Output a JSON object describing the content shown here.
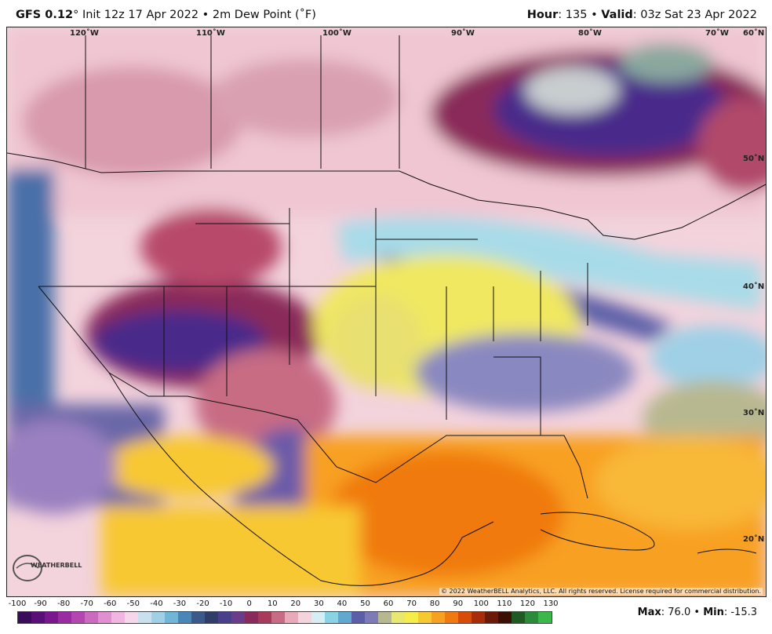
{
  "header": {
    "model": "GFS 0.12",
    "deg": "°",
    "init": "Init 12z 17 Apr 2022",
    "bullet": "•",
    "product": "2m Dew Point (˚F)",
    "hour_label": "Hour",
    "hour_value": ": 135",
    "valid_label": "Valid",
    "valid_value": ": 03z Sat 23 Apr 2022"
  },
  "map": {
    "lon_labels": [
      "120˚W",
      "110˚W",
      "100˚W",
      "90˚W",
      "80˚W",
      "70˚W"
    ],
    "lat_labels": [
      "60˚N",
      "50˚N",
      "40˚N",
      "30˚N",
      "20˚N"
    ],
    "copyright": "© 2022 WeatherBELL Analytics, LLC. All rights reserved. License required for commercial distribution.",
    "logo_text": "WEATHERBELL"
  },
  "legend": {
    "tick_labels": [
      "-100",
      "-90",
      "-80",
      "-70",
      "-60",
      "-50",
      "-40",
      "-30",
      "-20",
      "-10",
      "0",
      "10",
      "20",
      "30",
      "40",
      "50",
      "60",
      "70",
      "80",
      "90",
      "100",
      "110",
      "120",
      "130"
    ],
    "colors": [
      "#3a0b5a",
      "#5a0f78",
      "#7a1690",
      "#9a2ba0",
      "#b545b0",
      "#cc6ac0",
      "#e08fd0",
      "#f0b5e0",
      "#f6d6ea",
      "#c9e0ef",
      "#9fd0e6",
      "#6fb6d8",
      "#4a86b8",
      "#3b5a8c",
      "#2f3d6a",
      "#4a3f8a",
      "#6a3c8a",
      "#8a2a5a",
      "#a83a5c",
      "#c86c84",
      "#e8a9b9",
      "#f3d3dc",
      "#d6eef3",
      "#8ad2e6",
      "#5fa8cf",
      "#5b5fa8",
      "#7e7ab8",
      "#b8b890",
      "#e8e870",
      "#f6ec4a",
      "#f8c830",
      "#f8a020",
      "#f07a10",
      "#d84c0a",
      "#a82c08",
      "#6a1a06",
      "#3a1004",
      "#1e5a22",
      "#2a8c3a",
      "#3cb84a"
    ]
  },
  "stats": {
    "max_label": "Max",
    "max_value": ": 76.0",
    "bullet": "•",
    "min_label": "Min",
    "min_value": ": -15.3"
  }
}
